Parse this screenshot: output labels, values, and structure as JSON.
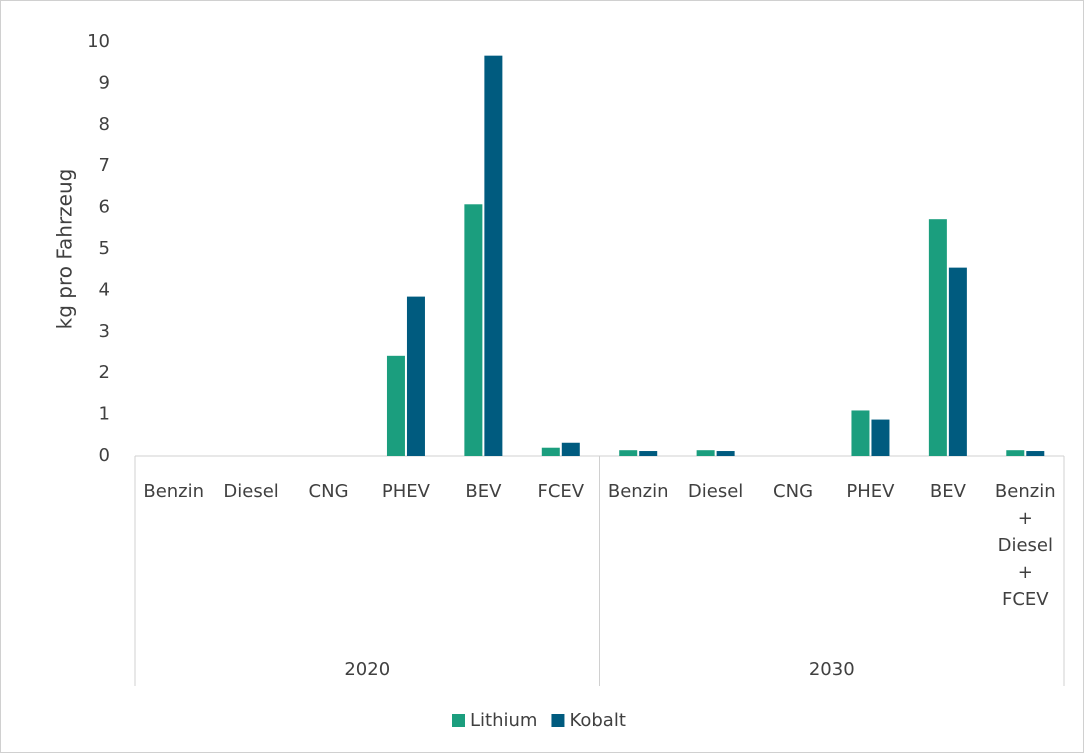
{
  "chart_data": {
    "type": "bar",
    "y_axis_label": "kg pro Fahrzeug",
    "category_groups": [
      {
        "name": "2020",
        "categories": [
          "Benzin",
          "Diesel",
          "CNG",
          "PHEV",
          "BEV",
          "FCEV"
        ]
      },
      {
        "name": "2030",
        "categories": [
          "Benzin",
          "Diesel",
          "CNG",
          "PHEV",
          "BEV",
          "Benzin\n+\nDiesel\n+\nFCEV"
        ]
      }
    ],
    "series": [
      {
        "name": "Lithium",
        "color": "#1b9e7e",
        "values": [
          0,
          0,
          0,
          2.42,
          6.08,
          0.2,
          0.14,
          0.14,
          0,
          1.1,
          5.72,
          0.14
        ]
      },
      {
        "name": "Kobalt",
        "color": "#005b7f",
        "values": [
          0,
          0,
          0,
          3.85,
          9.67,
          0.32,
          0.12,
          0.12,
          0,
          0.88,
          4.55,
          0.12
        ]
      }
    ],
    "ylim": [
      0,
      10
    ],
    "yticks": [
      0,
      1,
      2,
      3,
      4,
      5,
      6,
      7,
      8,
      9,
      10
    ],
    "grid": false,
    "legend": "bottom"
  }
}
